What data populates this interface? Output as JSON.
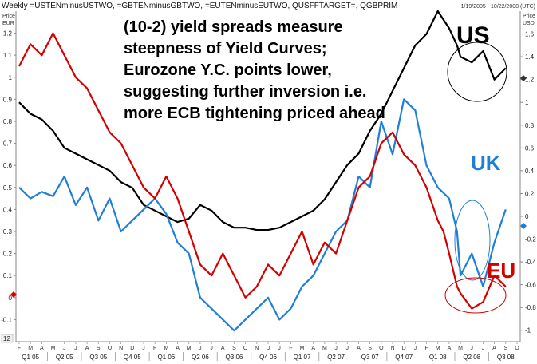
{
  "header": {
    "title": "Weekly =USTENminusUSTWO, =GBTENminusGBTWO, =EUTENminusEUTWO, QUSFFTARGET=, QGBPRIM",
    "date_range": "1/19/2005 - 10/22/2008 (UTC)",
    "left_unit_line1": "Price",
    "left_unit_line2": "EUR",
    "right_unit_line1": "Price",
    "right_unit_line2": "USD",
    "corner_label": "12"
  },
  "annotation": {
    "lines": [
      "(10-2) yield spreads measure",
      "steepness of Yield Curves;",
      "Eurozone Y.C. points lower,",
      "suggesting further inversion i.e.",
      "more ECB tightening priced ahead"
    ]
  },
  "labels": {
    "us": "US",
    "uk": "UK",
    "eu": "EU"
  },
  "colors": {
    "us": "#000000",
    "uk": "#1E7FD8",
    "eu": "#D40000",
    "left_marker": "#D40000",
    "right_marker_us": "#333333",
    "right_marker_uk": "#1E7FD8"
  },
  "chart_data": {
    "type": "line",
    "x_range": [
      "2005-01",
      "2008-10"
    ],
    "left_axis": {
      "unit": "EUR",
      "range": [
        -0.2,
        1.3
      ],
      "ticks": [
        "1.2",
        "1.1",
        "1",
        "0.9",
        "0.8",
        "0.7",
        "0.6",
        "0.5",
        "0.4",
        "0.3",
        "0.2",
        "0.1",
        "0",
        "-0.1"
      ]
    },
    "right_axis": {
      "unit": "USD",
      "range": [
        -1.1,
        1.8
      ],
      "ticks": [
        "1.6",
        "1.4",
        "1.2",
        "1",
        "0.8",
        "0.6",
        "0.4",
        "0.2",
        "0",
        "-0.2",
        "-0.4",
        "-0.6",
        "-0.8",
        "-1"
      ]
    },
    "months": [
      "F",
      "M",
      "A",
      "M",
      "J",
      "J",
      "A",
      "S",
      "O",
      "N",
      "D",
      "J",
      "F",
      "M",
      "A",
      "M",
      "J",
      "J",
      "A",
      "S",
      "O",
      "N",
      "D",
      "J",
      "F",
      "M",
      "A",
      "M",
      "J",
      "J",
      "A",
      "S",
      "O",
      "N",
      "D",
      "J",
      "F",
      "M",
      "A",
      "M",
      "J",
      "J",
      "A",
      "S",
      "O"
    ],
    "quarters": [
      "Q1 05",
      "Q2 05",
      "Q3 05",
      "Q4 05",
      "Q1 06",
      "Q2 06",
      "Q3 06",
      "Q4 06",
      "Q1 07",
      "Q2 07",
      "Q3 07",
      "Q4 07",
      "Q1 08",
      "Q2 08",
      "Q3 08"
    ],
    "series": [
      {
        "key": "us",
        "axis": "right",
        "t": [
          0,
          1,
          2,
          3,
          4,
          5,
          6,
          7,
          8,
          9,
          10,
          11,
          12,
          13,
          14,
          15,
          16,
          17,
          18,
          19,
          20,
          21,
          22,
          23,
          24,
          25,
          26,
          27,
          28,
          29,
          30,
          31,
          32,
          33,
          34,
          35,
          36,
          37,
          38,
          38.7,
          39,
          40,
          41,
          42,
          43
        ],
        "values": [
          1.0,
          0.9,
          0.85,
          0.75,
          0.6,
          0.55,
          0.5,
          0.45,
          0.4,
          0.3,
          0.25,
          0.1,
          0.05,
          0.0,
          -0.05,
          -0.02,
          0.1,
          0.05,
          -0.05,
          -0.1,
          -0.1,
          -0.12,
          -0.12,
          -0.1,
          -0.05,
          0.0,
          0.05,
          0.15,
          0.3,
          0.45,
          0.55,
          0.75,
          0.9,
          1.1,
          1.3,
          1.5,
          1.6,
          1.8,
          1.65,
          1.5,
          1.4,
          1.35,
          1.45,
          1.2,
          1.3
        ]
      },
      {
        "key": "uk",
        "axis": "left",
        "t": [
          0,
          1,
          2,
          3,
          4,
          5,
          6,
          7,
          8,
          9,
          10,
          11,
          12,
          13,
          14,
          15,
          16,
          17,
          18,
          19,
          20,
          21,
          22,
          23,
          24,
          25,
          26,
          27,
          28,
          29,
          30,
          31,
          32,
          33,
          34,
          35,
          36,
          37,
          38,
          38.7,
          39,
          40,
          41,
          41.5,
          42,
          43
        ],
        "values": [
          0.5,
          0.45,
          0.48,
          0.46,
          0.55,
          0.42,
          0.5,
          0.35,
          0.45,
          0.3,
          0.35,
          0.4,
          0.45,
          0.38,
          0.25,
          0.2,
          0.0,
          -0.05,
          -0.1,
          -0.15,
          -0.1,
          -0.05,
          0.0,
          -0.1,
          -0.05,
          0.05,
          0.1,
          0.2,
          0.3,
          0.35,
          0.55,
          0.5,
          0.8,
          0.65,
          0.9,
          0.85,
          0.6,
          0.5,
          0.45,
          0.3,
          0.1,
          0.2,
          0.05,
          0.15,
          0.25,
          0.4
        ]
      },
      {
        "key": "eu",
        "axis": "left",
        "t": [
          0,
          1,
          2,
          3,
          4,
          5,
          6,
          7,
          8,
          9,
          10,
          11,
          12,
          13,
          14,
          15,
          16,
          17,
          18,
          19,
          20,
          21,
          22,
          23,
          24,
          25,
          26,
          27,
          28,
          29,
          30,
          31,
          32,
          33,
          34,
          35,
          36,
          37,
          37.5,
          38,
          38.7,
          39,
          40,
          41,
          42,
          43
        ],
        "values": [
          1.05,
          1.15,
          1.1,
          1.2,
          1.1,
          1.0,
          0.95,
          0.85,
          0.75,
          0.7,
          0.6,
          0.5,
          0.45,
          0.55,
          0.45,
          0.3,
          0.15,
          0.1,
          0.2,
          0.1,
          0.0,
          0.05,
          0.15,
          0.1,
          0.2,
          0.3,
          0.15,
          0.25,
          0.2,
          0.35,
          0.5,
          0.55,
          0.7,
          0.75,
          0.65,
          0.6,
          0.5,
          0.35,
          0.3,
          0.2,
          0.05,
          0.02,
          -0.05,
          -0.02,
          0.1,
          0.05
        ]
      }
    ]
  }
}
